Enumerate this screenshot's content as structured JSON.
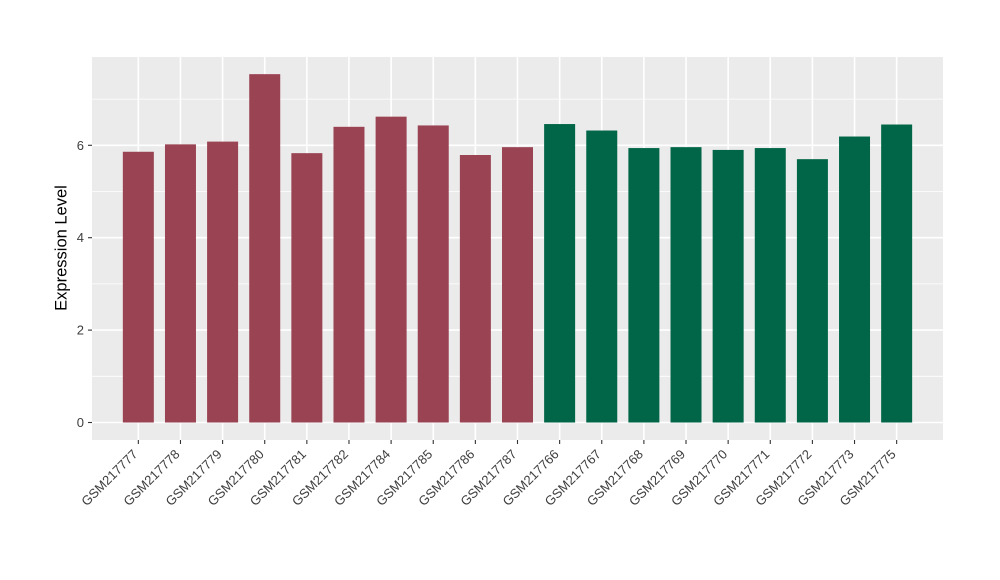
{
  "chart_data": {
    "type": "bar",
    "title": "",
    "xlabel": "",
    "ylabel": "Expression Level",
    "ylim": [
      0,
      7.9
    ],
    "yticks_major": [
      0,
      2,
      4,
      6
    ],
    "yticks_minor": [
      1,
      3,
      5,
      7
    ],
    "grid": true,
    "legend_position": "none",
    "panel_background": "#EBEBEB",
    "gridline_color": "#FFFFFF",
    "axis_tick_color": "#333333",
    "tick_label_color": "#3D3D3D",
    "axis_title_color": "#000000",
    "group_colors": {
      "group1": "#9A4353",
      "group2": "#006647"
    },
    "categories": [
      "GSM217777",
      "GSM217778",
      "GSM217779",
      "GSM217780",
      "GSM217781",
      "GSM217782",
      "GSM217784",
      "GSM217785",
      "GSM217786",
      "GSM217787",
      "GSM217766",
      "GSM217767",
      "GSM217768",
      "GSM217769",
      "GSM217770",
      "GSM217771",
      "GSM217772",
      "GSM217773",
      "GSM217775"
    ],
    "values": [
      5.86,
      6.02,
      6.08,
      7.54,
      5.83,
      6.4,
      6.62,
      6.43,
      5.79,
      5.96,
      6.46,
      6.32,
      5.94,
      5.96,
      5.9,
      5.94,
      5.7,
      6.19,
      6.45
    ],
    "groups": [
      "group1",
      "group1",
      "group1",
      "group1",
      "group1",
      "group1",
      "group1",
      "group1",
      "group1",
      "group1",
      "group2",
      "group2",
      "group2",
      "group2",
      "group2",
      "group2",
      "group2",
      "group2",
      "group2"
    ]
  }
}
